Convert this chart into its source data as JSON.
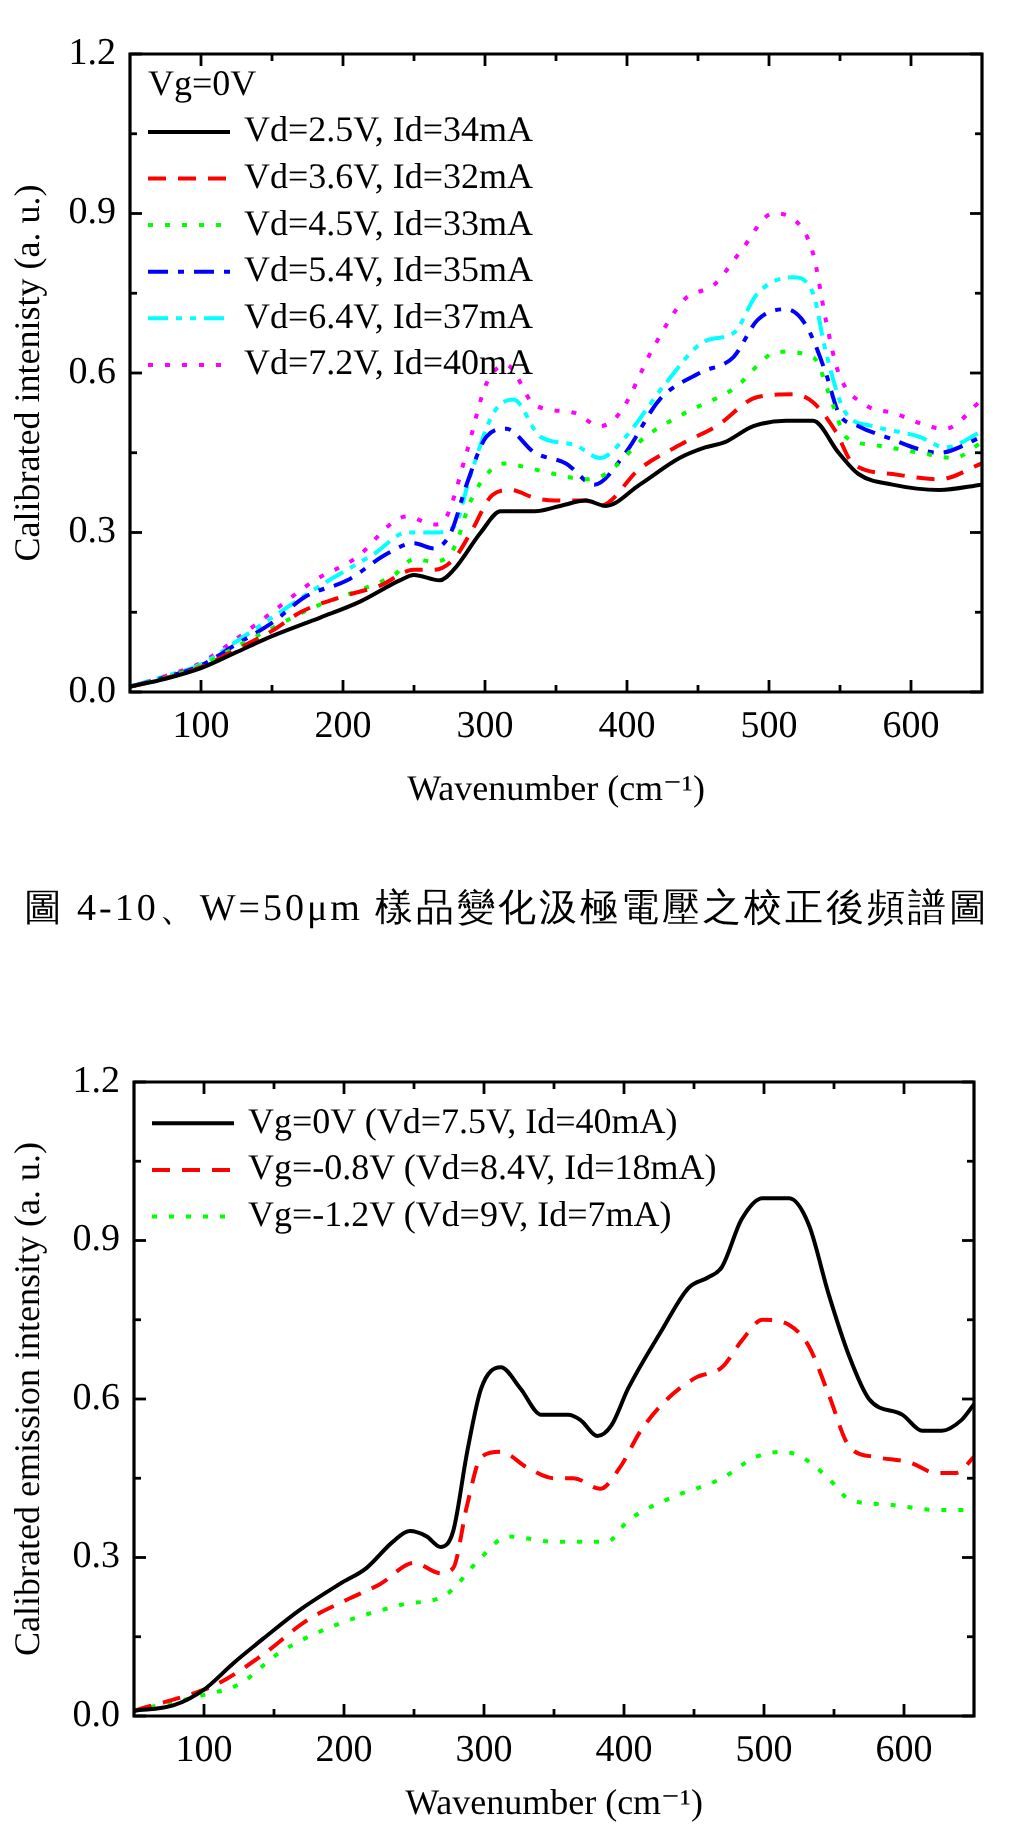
{
  "chart_data": [
    {
      "type": "line",
      "xlabel": "Wavenumber (cm⁻¹)",
      "ylabel": "Calibrated intenisty (a. u.)",
      "legend_title": "Vg=0V",
      "legend": "top left",
      "annotations": [
        "圖 4-10、W=50μm 樣品變化汲極電壓之校正後頻譜圖"
      ],
      "xlim": [
        50,
        650
      ],
      "xticks": [
        100,
        {
          "value": 150,
          "label": null
        },
        200,
        {
          "value": 250,
          "label": null
        },
        300,
        {
          "value": 350,
          "label": null
        },
        400,
        {
          "value": 450,
          "label": null
        },
        500,
        {
          "value": 550,
          "label": null
        },
        600
      ],
      "ylim": [
        0,
        1.2
      ],
      "yticks": [
        {
          "value": 0,
          "label": "0.0"
        },
        {
          "value": 0.15,
          "label": null
        },
        0.3,
        {
          "value": 0.45,
          "label": null
        },
        0.6,
        {
          "value": 0.75,
          "label": null
        },
        0.9,
        {
          "value": 1.05,
          "label": null
        },
        1.2
      ],
      "series": [
        {
          "name": "Vd=2.5V, Id=34mA",
          "color": "#000000",
          "line_style": "solid",
          "x": [
            50,
            75,
            100,
            125,
            150,
            184,
            212,
            240,
            250,
            268,
            278,
            297,
            311,
            335,
            353,
            371,
            385,
            409,
            437,
            455,
            469,
            489,
            512,
            531,
            549,
            563,
            587,
            620,
            650
          ],
          "values": [
            0.01,
            0.025,
            0.045,
            0.075,
            0.105,
            0.14,
            0.17,
            0.21,
            0.22,
            0.21,
            0.23,
            0.3,
            0.34,
            0.34,
            0.35,
            0.36,
            0.35,
            0.39,
            0.44,
            0.46,
            0.47,
            0.5,
            0.51,
            0.51,
            0.45,
            0.41,
            0.39,
            0.38,
            0.39
          ]
        },
        {
          "name": "Vd=3.6V, Id=32mA",
          "color": "#ff0000",
          "line_style": "dashed",
          "x": [
            50,
            75,
            100,
            125,
            150,
            170,
            200,
            226,
            250,
            264,
            278,
            290,
            305,
            318,
            335,
            349,
            371,
            381,
            409,
            441,
            463,
            492,
            517,
            531,
            547,
            559,
            587,
            620,
            650
          ],
          "values": [
            0.01,
            0.026,
            0.047,
            0.08,
            0.115,
            0.15,
            0.18,
            0.2,
            0.23,
            0.23,
            0.25,
            0.3,
            0.37,
            0.38,
            0.365,
            0.36,
            0.36,
            0.35,
            0.42,
            0.47,
            0.5,
            0.555,
            0.56,
            0.545,
            0.49,
            0.43,
            0.41,
            0.4,
            0.43
          ]
        },
        {
          "name": "Vd=4.5V, Id=33mA",
          "color": "#00ff00",
          "line_style": "dotted",
          "x": [
            50,
            75,
            100,
            125,
            150,
            180,
            210,
            236,
            250,
            264,
            278,
            290,
            305,
            315,
            325,
            349,
            371,
            385,
            413,
            441,
            475,
            507,
            531,
            545,
            554,
            573,
            606,
            630,
            650
          ],
          "values": [
            0.01,
            0.027,
            0.05,
            0.085,
            0.12,
            0.16,
            0.19,
            0.22,
            0.25,
            0.245,
            0.27,
            0.36,
            0.42,
            0.43,
            0.425,
            0.41,
            0.4,
            0.41,
            0.48,
            0.525,
            0.57,
            0.64,
            0.63,
            0.54,
            0.48,
            0.465,
            0.45,
            0.44,
            0.47
          ]
        },
        {
          "name": "Vd=5.4V, Id=35mA",
          "color": "#0000ff",
          "line_style": "dashdot",
          "x": [
            50,
            75,
            100,
            125,
            150,
            174,
            203,
            231,
            250,
            264,
            276,
            287,
            301,
            315,
            335,
            357,
            377,
            399,
            423,
            451,
            475,
            492,
            512,
            526,
            540,
            549,
            563,
            582,
            620,
            650
          ],
          "values": [
            0.01,
            0.028,
            0.05,
            0.09,
            0.13,
            0.18,
            0.21,
            0.26,
            0.28,
            0.27,
            0.3,
            0.39,
            0.48,
            0.495,
            0.45,
            0.43,
            0.39,
            0.45,
            0.55,
            0.6,
            0.63,
            0.7,
            0.72,
            0.69,
            0.6,
            0.525,
            0.5,
            0.48,
            0.45,
            0.48
          ]
        },
        {
          "name": "Vd=6.4V, Id=37mA",
          "color": "#00ffff",
          "line_style": "dashdotdot",
          "x": [
            50,
            75,
            100,
            125,
            150,
            184,
            222,
            245,
            264,
            278,
            290,
            306,
            320,
            339,
            363,
            381,
            399,
            427,
            455,
            475,
            492,
            517,
            531,
            540,
            554,
            573,
            606,
            624,
            650
          ],
          "values": [
            0.01,
            0.03,
            0.052,
            0.095,
            0.14,
            0.2,
            0.26,
            0.3,
            0.3,
            0.31,
            0.41,
            0.525,
            0.55,
            0.48,
            0.465,
            0.44,
            0.48,
            0.58,
            0.66,
            0.675,
            0.75,
            0.78,
            0.75,
            0.64,
            0.525,
            0.5,
            0.48,
            0.46,
            0.49
          ]
        },
        {
          "name": "Vd=7.2V, Id=40mA",
          "color": "#ff00ff",
          "line_style": "dotted",
          "x": [
            50,
            75,
            100,
            125,
            150,
            180,
            208,
            245,
            264,
            273,
            287,
            301,
            315,
            335,
            363,
            381,
            395,
            419,
            441,
            461,
            479,
            503,
            517,
            531,
            540,
            549,
            568,
            587,
            624,
            650
          ],
          "values": [
            0.01,
            0.03,
            0.055,
            0.1,
            0.15,
            0.21,
            0.25,
            0.33,
            0.315,
            0.33,
            0.45,
            0.58,
            0.615,
            0.54,
            0.525,
            0.5,
            0.525,
            0.65,
            0.74,
            0.765,
            0.825,
            0.9,
            0.89,
            0.825,
            0.7,
            0.6,
            0.54,
            0.525,
            0.495,
            0.55
          ]
        }
      ]
    },
    {
      "type": "line",
      "xlabel": "Wavenumber (cm⁻¹)",
      "ylabel": "Calibrated emission intensity (a. u.)",
      "legend": "top left",
      "xlim": [
        50,
        650
      ],
      "xticks": [
        100,
        {
          "value": 150,
          "label": null
        },
        200,
        {
          "value": 250,
          "label": null
        },
        300,
        {
          "value": 350,
          "label": null
        },
        400,
        {
          "value": 450,
          "label": null
        },
        500,
        {
          "value": 550,
          "label": null
        },
        600
      ],
      "ylim": [
        0,
        1.2
      ],
      "yticks": [
        {
          "value": 0,
          "label": "0.0"
        },
        {
          "value": 0.15,
          "label": null
        },
        0.3,
        {
          "value": 0.45,
          "label": null
        },
        0.6,
        {
          "value": 0.75,
          "label": null
        },
        0.9,
        {
          "value": 1.05,
          "label": null
        },
        1.2
      ],
      "series": [
        {
          "name": "Vg=0V (Vd=7.5V, Id=40mA)",
          "color": "#000000",
          "line_style": "solid",
          "x": [
            50,
            78,
            100,
            121,
            144,
            168,
            197,
            216,
            235,
            247,
            259,
            269,
            278,
            288,
            298,
            312,
            326,
            341,
            360,
            369,
            381,
            391,
            403,
            427,
            446,
            460,
            470,
            484,
            499,
            518,
            532,
            546,
            561,
            575,
            599,
            613,
            627,
            641,
            650
          ],
          "values": [
            0.01,
            0.02,
            0.05,
            0.1,
            0.15,
            0.2,
            0.25,
            0.28,
            0.33,
            0.35,
            0.34,
            0.32,
            0.35,
            0.5,
            0.62,
            0.66,
            0.62,
            0.57,
            0.57,
            0.56,
            0.53,
            0.55,
            0.62,
            0.73,
            0.81,
            0.83,
            0.85,
            0.94,
            0.98,
            0.98,
            0.93,
            0.8,
            0.68,
            0.6,
            0.57,
            0.54,
            0.54,
            0.56,
            0.59
          ]
        },
        {
          "name": "Vg=-0.8V (Vd=8.4V, Id=18mA)",
          "color": "#ff0000",
          "line_style": "dashed",
          "x": [
            50,
            100,
            116,
            144,
            173,
            202,
            226,
            250,
            269,
            278,
            288,
            298,
            312,
            331,
            350,
            364,
            383,
            397,
            412,
            431,
            451,
            470,
            484,
            499,
            518,
            532,
            546,
            561,
            580,
            604,
            623,
            637,
            650
          ],
          "values": [
            0.01,
            0.05,
            0.07,
            0.12,
            0.18,
            0.22,
            0.25,
            0.29,
            0.27,
            0.28,
            0.4,
            0.49,
            0.5,
            0.47,
            0.45,
            0.45,
            0.43,
            0.47,
            0.54,
            0.6,
            0.64,
            0.66,
            0.71,
            0.75,
            0.74,
            0.7,
            0.61,
            0.51,
            0.49,
            0.48,
            0.46,
            0.46,
            0.49
          ]
        },
        {
          "name": "Vg=-1.2V (Vd=9V, Id=7mA)",
          "color": "#00ff00",
          "line_style": "dotted",
          "x": [
            50,
            100,
            125,
            154,
            192,
            240,
            273,
            298,
            317,
            350,
            388,
            403,
            431,
            470,
            494,
            513,
            527,
            546,
            561,
            589,
            623,
            650
          ],
          "values": [
            0.01,
            0.04,
            0.06,
            0.12,
            0.17,
            0.21,
            0.23,
            0.3,
            0.34,
            0.33,
            0.33,
            0.37,
            0.41,
            0.45,
            0.49,
            0.5,
            0.49,
            0.45,
            0.41,
            0.4,
            0.39,
            0.39
          ]
        }
      ]
    }
  ]
}
